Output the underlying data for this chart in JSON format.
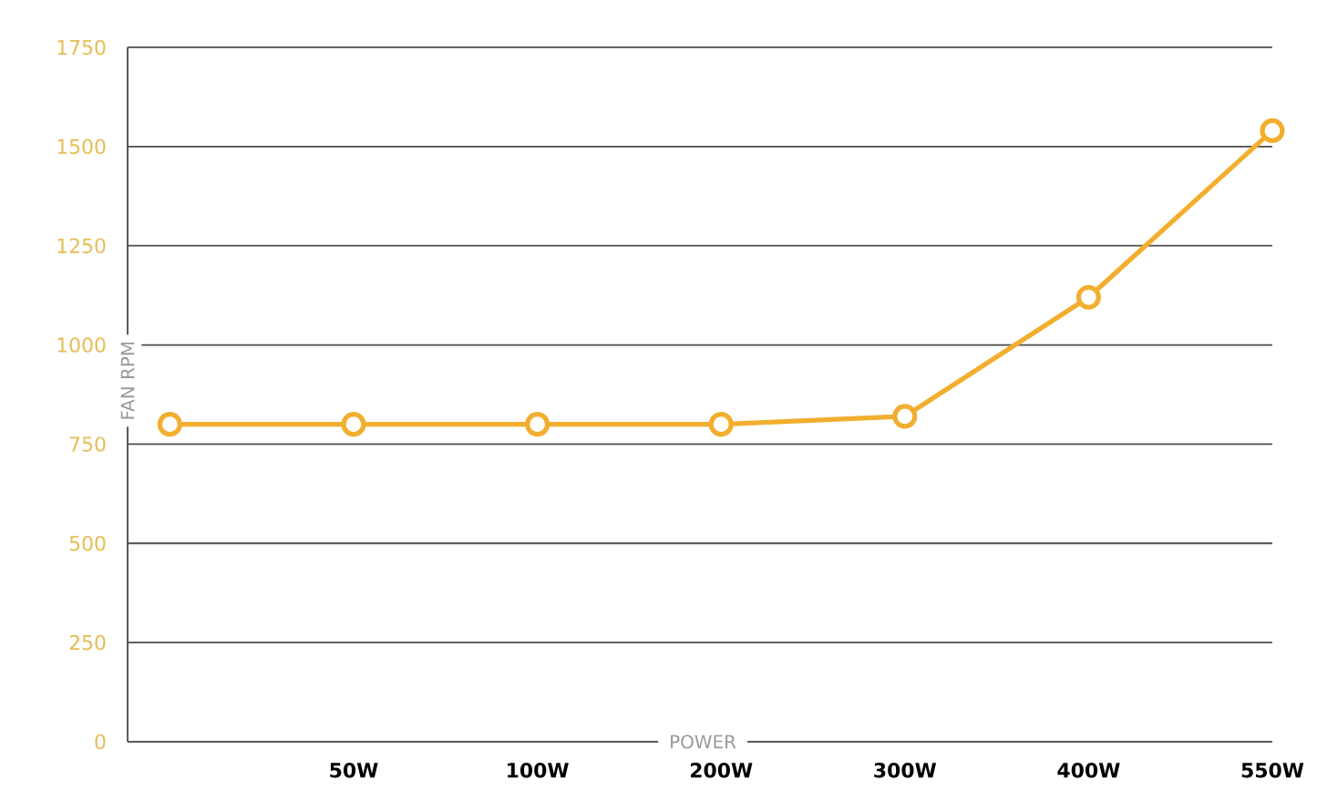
{
  "chart_data": {
    "type": "line",
    "xlabel": "POWER",
    "ylabel": "FAN RPM",
    "categories": [
      null,
      "50W",
      "100W",
      "200W",
      "300W",
      "400W",
      "550W"
    ],
    "series": [
      {
        "color": "#f2ae2e",
        "values": [
          800,
          800,
          800,
          800,
          820,
          1120,
          1540
        ]
      }
    ],
    "ylim": [
      0,
      1750
    ],
    "yticks": [
      0,
      250,
      500,
      750,
      1000,
      1250,
      1500,
      1750
    ],
    "grid": "y",
    "marker": "circle",
    "line_style": "solid"
  }
}
